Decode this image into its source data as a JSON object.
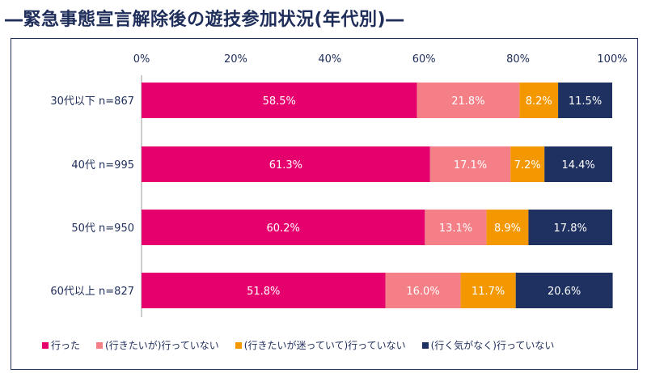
{
  "title": "―緊急事態宣言解除後の遊技参加状況(年代別)―",
  "chart_data": {
    "type": "bar",
    "orientation": "horizontal",
    "stacked": true,
    "percent_scale": true,
    "categories": [
      "30代以下 n=867",
      "40代 n=995",
      "50代 n=950",
      "60代以上 n=827"
    ],
    "series": [
      {
        "name": "行った",
        "values": [
          58.5,
          61.3,
          60.2,
          51.8
        ],
        "color": "#e6006e"
      },
      {
        "name": "(行きたいが)行っていない",
        "values": [
          21.8,
          17.1,
          13.1,
          16.0
        ],
        "color": "#f47f86"
      },
      {
        "name": "(行きたいが迷っていて)行っていない",
        "values": [
          8.2,
          7.2,
          8.9,
          11.7
        ],
        "color": "#f39800"
      },
      {
        "name": "(行く気がなく)行っていない",
        "values": [
          11.5,
          14.4,
          17.8,
          20.6
        ],
        "color": "#1f3160"
      }
    ],
    "x_ticks": [
      "0%",
      "20%",
      "40%",
      "60%",
      "80%",
      "100%"
    ],
    "xlim": [
      0,
      100
    ],
    "grid": false,
    "legend_position": "bottom"
  }
}
